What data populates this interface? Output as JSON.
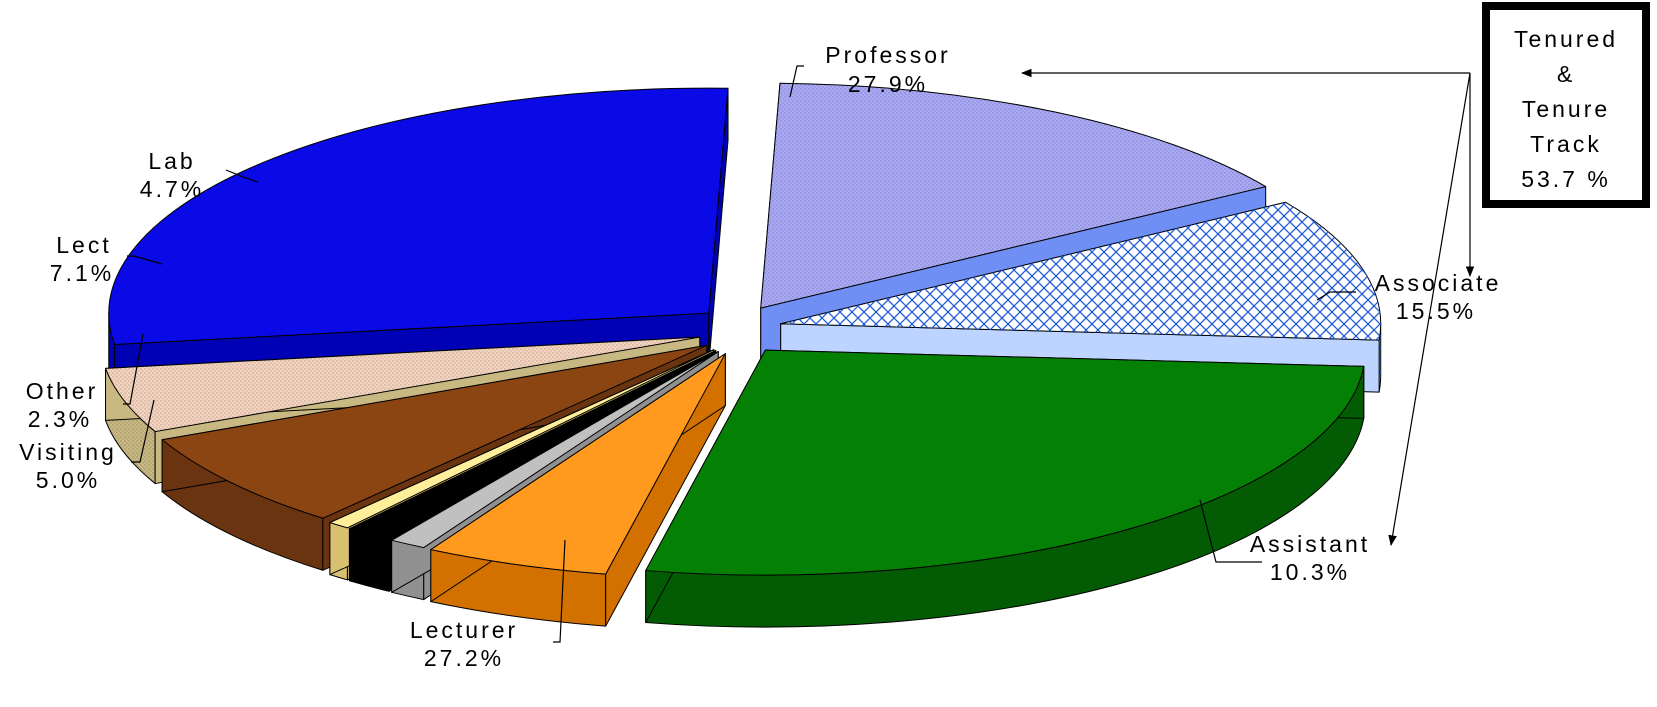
{
  "chart_data": {
    "type": "pie",
    "style": "exploded 3D pie",
    "slices": [
      {
        "key": "professor",
        "label": "Professor",
        "value": 27.9,
        "value_label": "27.9%",
        "color": "#0a0ae6",
        "side": "#0000b4",
        "pattern": "none"
      },
      {
        "key": "associate",
        "label": "Associate",
        "value": 15.5,
        "value_label": "15.5%",
        "color": "#a9a9f7",
        "side": "#6f8ff5",
        "pattern": "dots"
      },
      {
        "key": "assistant",
        "label": "Assistant",
        "value": 10.3,
        "value_label": "10.3%",
        "color": "#ffffff",
        "side": "#bcd4ff",
        "pattern": "crosshatch-blue"
      },
      {
        "key": "lecturer",
        "label": "Lecturer",
        "value": 27.2,
        "value_label": "27.2%",
        "color": "#048004",
        "side": "#035c03",
        "pattern": "none"
      },
      {
        "key": "visiting",
        "label": "Visiting",
        "value": 5.0,
        "value_label": "5.0%",
        "color": "#ff9a1e",
        "side": "#d27000",
        "pattern": "none"
      },
      {
        "key": "other_gray",
        "label": "",
        "value": 1.0,
        "value_label": "",
        "color": "#c0c0c0",
        "side": "#909090",
        "pattern": "none"
      },
      {
        "key": "other_black",
        "label": "",
        "value": 1.3,
        "value_label": "",
        "color": "#000000",
        "side": "#000000",
        "pattern": "none"
      },
      {
        "key": "other_cream",
        "label": "",
        "value": 0.6,
        "value_label": "",
        "color": "#ffee9a",
        "side": "#d8c070",
        "pattern": "none"
      },
      {
        "key": "lect",
        "label": "Lect",
        "value": 7.1,
        "value_label": "7.1%",
        "color": "#8b4513",
        "side": "#6a3410",
        "pattern": "none"
      },
      {
        "key": "lab",
        "label": "Lab",
        "value": 4.7,
        "value_label": "4.7%",
        "color": "#f4d4be",
        "side": "#c8b882",
        "pattern": "dots"
      }
    ],
    "other": {
      "label": "Other",
      "value_label": "2.3%"
    },
    "callout": {
      "lines": [
        "Tenured",
        "&",
        "Tenure",
        "Track",
        "53.7 %"
      ],
      "value": 53.7,
      "covers": [
        "Professor",
        "Associate",
        "Assistant"
      ]
    }
  }
}
